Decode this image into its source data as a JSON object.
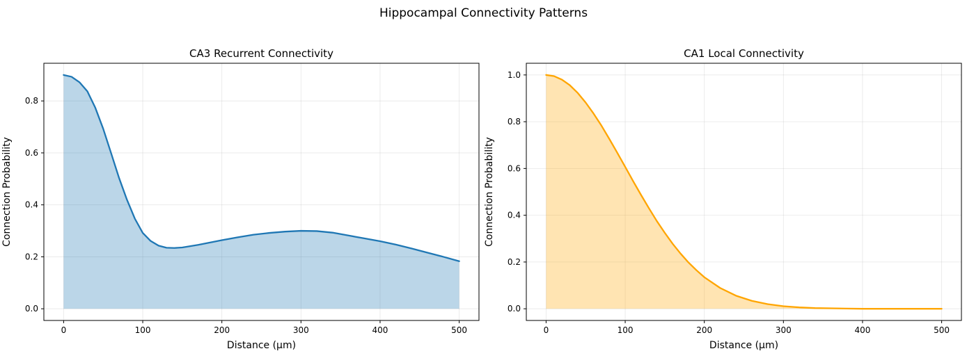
{
  "figure": {
    "title": "Hippocampal Connectivity Patterns"
  },
  "chart_data": [
    {
      "type": "area",
      "title": "CA3 Recurrent Connectivity",
      "xlabel": "Distance (μm)",
      "ylabel": "Connection Probability",
      "xlim": [
        -25,
        525
      ],
      "ylim": [
        -0.045,
        0.945
      ],
      "xticks": [
        0,
        100,
        200,
        300,
        400,
        500
      ],
      "yticks": [
        0.0,
        0.2,
        0.4,
        0.6,
        0.8
      ],
      "grid": true,
      "series": [
        {
          "color": "#1f77b4",
          "fill_color": "#1f77b4",
          "fill_opacity": 0.3,
          "x": [
            0,
            10,
            20,
            30,
            40,
            50,
            60,
            70,
            80,
            90,
            100,
            110,
            120,
            130,
            140,
            150,
            160,
            170,
            180,
            190,
            200,
            220,
            240,
            260,
            280,
            300,
            320,
            340,
            360,
            380,
            400,
            420,
            440,
            460,
            480,
            500
          ],
          "y": [
            0.9,
            0.893,
            0.872,
            0.837,
            0.774,
            0.693,
            0.599,
            0.504,
            0.42,
            0.347,
            0.292,
            0.261,
            0.243,
            0.235,
            0.234,
            0.236,
            0.241,
            0.246,
            0.252,
            0.258,
            0.264,
            0.275,
            0.285,
            0.292,
            0.297,
            0.3,
            0.299,
            0.293,
            0.282,
            0.271,
            0.26,
            0.247,
            0.232,
            0.216,
            0.2,
            0.183
          ]
        }
      ]
    },
    {
      "type": "area",
      "title": "CA1 Local Connectivity",
      "xlabel": "Distance (μm)",
      "ylabel": "Connection Probability",
      "xlim": [
        -25,
        525
      ],
      "ylim": [
        -0.05,
        1.05
      ],
      "xticks": [
        0,
        100,
        200,
        300,
        400,
        500
      ],
      "yticks": [
        0.0,
        0.2,
        0.4,
        0.6,
        0.8,
        1.0
      ],
      "grid": true,
      "series": [
        {
          "color": "#ffa500",
          "fill_color": "#ffa500",
          "fill_opacity": 0.3,
          "x": [
            0,
            10,
            20,
            30,
            40,
            50,
            60,
            70,
            80,
            90,
            100,
            110,
            120,
            130,
            140,
            150,
            160,
            170,
            180,
            190,
            200,
            220,
            240,
            260,
            280,
            300,
            320,
            340,
            360,
            380,
            400,
            420,
            440,
            460,
            480,
            500
          ],
          "y": [
            1.0,
            0.995,
            0.98,
            0.956,
            0.923,
            0.882,
            0.835,
            0.783,
            0.726,
            0.667,
            0.607,
            0.546,
            0.487,
            0.43,
            0.375,
            0.325,
            0.278,
            0.236,
            0.198,
            0.165,
            0.135,
            0.089,
            0.056,
            0.034,
            0.02,
            0.011,
            0.006,
            0.003,
            0.002,
            0.001,
            0.0,
            0.0,
            0.0,
            0.0,
            0.0,
            0.0
          ]
        }
      ]
    }
  ]
}
